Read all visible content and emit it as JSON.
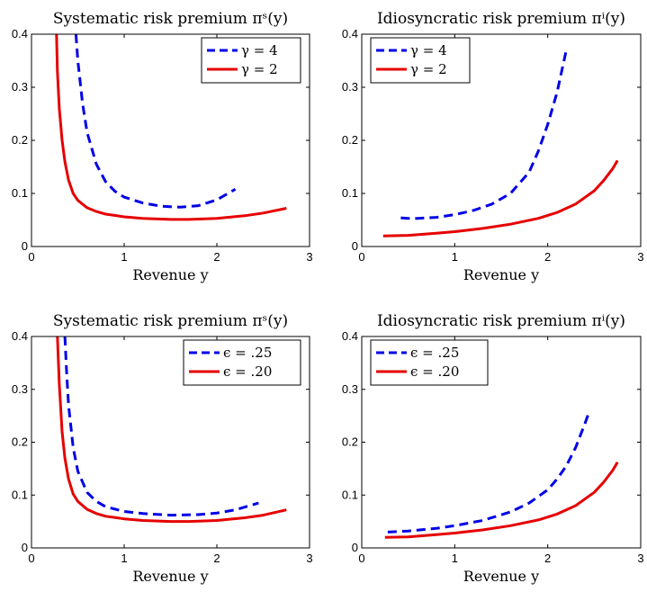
{
  "chart_data": [
    {
      "type": "line",
      "title": "Systematic risk premium πˢ(y)",
      "xlabel": "Revenue y",
      "ylabel": "",
      "xlim": [
        0,
        3
      ],
      "ylim": [
        0,
        0.4
      ],
      "xticks": [
        "0",
        "1",
        "2",
        "3"
      ],
      "yticks": [
        "0",
        "0.1",
        "0.2",
        "0.3",
        "0.4"
      ],
      "legend_position": "top-right",
      "series": [
        {
          "name": "γ = 4",
          "color": "#0000e6",
          "style": "dashed",
          "x": [
            0.48,
            0.5,
            0.55,
            0.6,
            0.7,
            0.8,
            0.9,
            1.0,
            1.2,
            1.4,
            1.6,
            1.8,
            2.0,
            2.2
          ],
          "y": [
            0.4,
            0.35,
            0.27,
            0.215,
            0.155,
            0.122,
            0.104,
            0.093,
            0.082,
            0.076,
            0.074,
            0.077,
            0.088,
            0.108
          ]
        },
        {
          "name": "γ = 2",
          "color": "#e60000",
          "style": "solid",
          "x": [
            0.27,
            0.28,
            0.3,
            0.33,
            0.36,
            0.4,
            0.45,
            0.5,
            0.6,
            0.7,
            0.8,
            1.0,
            1.2,
            1.5,
            1.7,
            2.0,
            2.3,
            2.5,
            2.75
          ],
          "y": [
            0.4,
            0.33,
            0.26,
            0.2,
            0.16,
            0.125,
            0.1,
            0.087,
            0.073,
            0.066,
            0.061,
            0.056,
            0.053,
            0.051,
            0.051,
            0.053,
            0.058,
            0.063,
            0.072
          ]
        }
      ]
    },
    {
      "type": "line",
      "title": "Idiosyncratic risk premium πⁱ(y)",
      "xlabel": "Revenue y",
      "ylabel": "",
      "xlim": [
        0,
        3
      ],
      "ylim": [
        0,
        0.4
      ],
      "xticks": [
        "0",
        "1",
        "2",
        "3"
      ],
      "yticks": [
        "0",
        "0.1",
        "0.2",
        "0.3",
        "0.4"
      ],
      "legend_position": "top-left",
      "series": [
        {
          "name": "γ = 4",
          "color": "#0000e6",
          "style": "dashed",
          "x": [
            0.42,
            0.5,
            0.6,
            0.8,
            1.0,
            1.2,
            1.4,
            1.6,
            1.8,
            1.9,
            2.0,
            2.1,
            2.2
          ],
          "y": [
            0.054,
            0.053,
            0.053,
            0.055,
            0.06,
            0.068,
            0.08,
            0.1,
            0.14,
            0.18,
            0.23,
            0.29,
            0.37
          ]
        },
        {
          "name": "γ = 2",
          "color": "#e60000",
          "style": "solid",
          "x": [
            0.23,
            0.5,
            0.8,
            1.0,
            1.3,
            1.6,
            1.9,
            2.1,
            2.3,
            2.5,
            2.6,
            2.7,
            2.75
          ],
          "y": [
            0.02,
            0.021,
            0.025,
            0.028,
            0.034,
            0.042,
            0.053,
            0.064,
            0.08,
            0.105,
            0.124,
            0.147,
            0.162
          ]
        }
      ]
    },
    {
      "type": "line",
      "title": "Systematic risk premium πˢ(y)",
      "xlabel": "Revenue y",
      "ylabel": "",
      "xlim": [
        0,
        3
      ],
      "ylim": [
        0,
        0.4
      ],
      "xticks": [
        "0",
        "1",
        "2",
        "3"
      ],
      "yticks": [
        "0",
        "0.1",
        "0.2",
        "0.3",
        "0.4"
      ],
      "legend_position": "top-right",
      "series": [
        {
          "name": "ϵ = .25",
          "color": "#0000e6",
          "style": "dashed",
          "x": [
            0.36,
            0.38,
            0.4,
            0.45,
            0.5,
            0.6,
            0.7,
            0.8,
            1.0,
            1.2,
            1.5,
            1.8,
            2.0,
            2.2,
            2.45
          ],
          "y": [
            0.4,
            0.33,
            0.27,
            0.19,
            0.145,
            0.105,
            0.088,
            0.078,
            0.069,
            0.065,
            0.062,
            0.063,
            0.066,
            0.072,
            0.085
          ]
        },
        {
          "name": "ϵ = .20",
          "color": "#e60000",
          "style": "solid",
          "x": [
            0.28,
            0.3,
            0.33,
            0.36,
            0.4,
            0.45,
            0.5,
            0.6,
            0.7,
            0.8,
            1.0,
            1.2,
            1.5,
            1.7,
            2.0,
            2.3,
            2.5,
            2.75
          ],
          "y": [
            0.4,
            0.31,
            0.22,
            0.17,
            0.13,
            0.102,
            0.088,
            0.073,
            0.065,
            0.06,
            0.055,
            0.052,
            0.05,
            0.05,
            0.052,
            0.057,
            0.062,
            0.072
          ]
        }
      ]
    },
    {
      "type": "line",
      "title": "Idiosyncratic risk premium πⁱ(y)",
      "xlabel": "Revenue y",
      "ylabel": "",
      "xlim": [
        0,
        3
      ],
      "ylim": [
        0,
        0.4
      ],
      "xticks": [
        "0",
        "1",
        "2",
        "3"
      ],
      "yticks": [
        "0",
        "0.1",
        "0.2",
        "0.3",
        "0.4"
      ],
      "legend_position": "top-left",
      "series": [
        {
          "name": "ϵ = .25",
          "color": "#0000e6",
          "style": "dashed",
          "x": [
            0.28,
            0.5,
            0.8,
            1.0,
            1.3,
            1.6,
            1.8,
            2.0,
            2.1,
            2.2,
            2.3,
            2.4,
            2.45
          ],
          "y": [
            0.03,
            0.032,
            0.037,
            0.042,
            0.052,
            0.068,
            0.085,
            0.11,
            0.13,
            0.155,
            0.19,
            0.235,
            0.26
          ]
        },
        {
          "name": "ϵ = .20",
          "color": "#e60000",
          "style": "solid",
          "x": [
            0.25,
            0.5,
            0.8,
            1.0,
            1.3,
            1.6,
            1.9,
            2.1,
            2.3,
            2.5,
            2.6,
            2.7,
            2.75
          ],
          "y": [
            0.02,
            0.021,
            0.025,
            0.028,
            0.034,
            0.042,
            0.053,
            0.064,
            0.08,
            0.105,
            0.124,
            0.147,
            0.162
          ]
        }
      ]
    }
  ]
}
